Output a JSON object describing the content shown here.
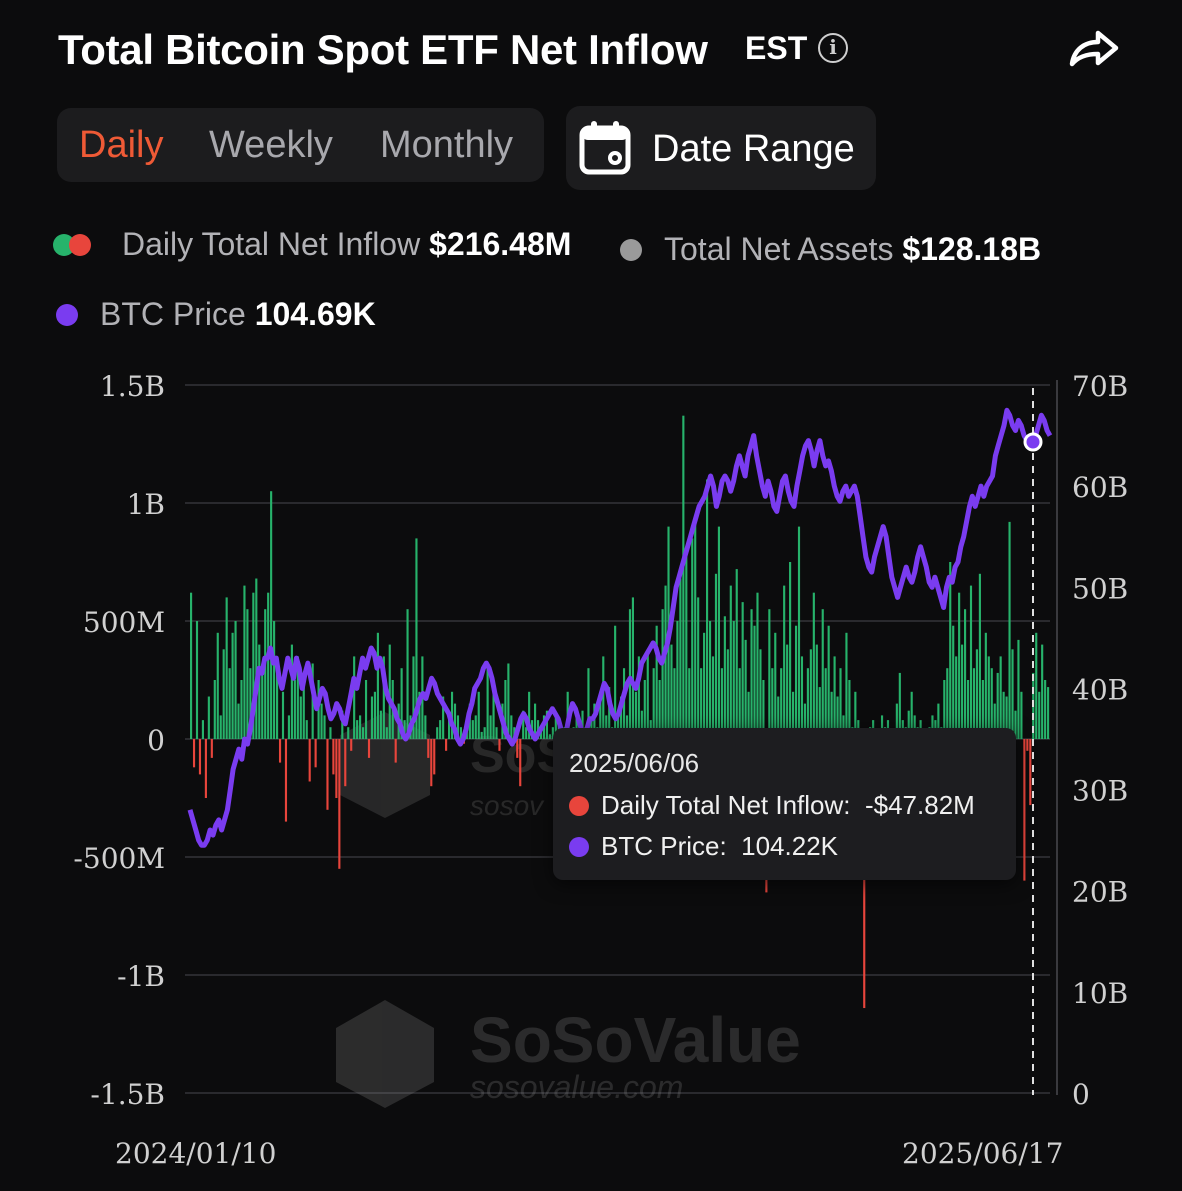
{
  "header": {
    "title": "Total Bitcoin Spot ETF Net Inflow",
    "timezone": "EST",
    "info_glyph": "i"
  },
  "period_tabs": [
    {
      "label": "Daily",
      "active": true
    },
    {
      "label": "Weekly",
      "active": false
    },
    {
      "label": "Monthly",
      "active": false
    }
  ],
  "date_range": {
    "label": "Date Range"
  },
  "legend": {
    "inflow": {
      "label": "Daily Total Net Inflow",
      "value": "$216.48M"
    },
    "assets": {
      "label": "Total Net Assets",
      "value": "$128.18B"
    },
    "price": {
      "label": "BTC Price",
      "value": "104.69K"
    }
  },
  "tooltip": {
    "date": "2025/06/06",
    "inflow_label": "Daily Total Net Inflow:",
    "inflow_value": "-$47.82M",
    "price_label": "BTC Price:",
    "price_value": "104.22K"
  },
  "watermark": {
    "brand": "SoSoValue",
    "site": "sosovalue.com",
    "brand_short": "SoSoV",
    "site_short": "sosov"
  },
  "colors": {
    "inflow_positive": "#27b36b",
    "inflow_negative": "#e8453c",
    "price_line": "#7a3cf0",
    "assets": "#9a9a9a",
    "accent": "#ef5a36"
  },
  "chart_data": {
    "type": "bar",
    "x_start": "2024/01/10",
    "x_end": "2025/06/17",
    "x_tick_labels": [
      "2024/01/10",
      "2025/06/17"
    ],
    "left_axis": {
      "ticks": [
        1.5,
        1,
        0.5,
        0,
        -0.5,
        -1,
        -1.5
      ],
      "labels": [
        "1.5B",
        "1B",
        "500M",
        "0",
        "-500M",
        "-1B",
        "-1.5B"
      ],
      "range": [
        -1.5,
        1.5
      ]
    },
    "right_axis": {
      "ticks": [
        70,
        60,
        50,
        40,
        30,
        20,
        10,
        0
      ],
      "labels": [
        "70B",
        "60B",
        "50B",
        "40B",
        "30B",
        "20B",
        "10B",
        "0"
      ],
      "range": [
        0,
        70
      ]
    },
    "inflow_bars_billions": [
      0.62,
      -0.12,
      0.5,
      -0.15,
      0.08,
      -0.25,
      0.18,
      -0.08,
      0.25,
      0.45,
      0.1,
      0.38,
      0.6,
      0.3,
      0.45,
      0.5,
      0.15,
      0.25,
      0.65,
      0.55,
      0.3,
      0.62,
      0.68,
      0.4,
      0.3,
      0.55,
      0.62,
      1.05,
      0.5,
      0.3,
      -0.1,
      0.2,
      -0.35,
      0.1,
      0.4,
      0.25,
      0.35,
      0.18,
      0.28,
      0.08,
      -0.18,
      0.32,
      -0.12,
      0.25,
      0.15,
      0.1,
      -0.3,
      0.05,
      -0.15,
      -0.25,
      -0.55,
      0.12,
      -0.2,
      0.05,
      -0.05,
      0.35,
      0.08,
      0.1,
      0.05,
      0.25,
      -0.08,
      0.18,
      0.2,
      0.45,
      0.12,
      0.35,
      0.05,
      0.4,
      0.25,
      -0.1,
      0.15,
      0.3,
      0.08,
      0.55,
      0.1,
      0.35,
      0.85,
      0.2,
      0.35,
      0.1,
      -0.08,
      -0.2,
      -0.15,
      0.05,
      0.08,
      0.18,
      -0.05,
      0.12,
      0.2,
      0.15,
      0.1,
      0.05,
      -0.02,
      0.05,
      0.15,
      0.08,
      0.1,
      0.2,
      0.03,
      0.05,
      0.3,
      0.1,
      0.2,
      0.05,
      -0.05,
      0.15,
      0.25,
      0.32,
      0.1,
      0.05,
      -0.08,
      -0.2,
      0.12,
      0.05,
      0.2,
      0.08,
      0.15,
      0.08,
      0.05,
      0.1,
      0.12,
      0.02,
      0.05,
      0.1,
      0.08,
      0.05,
      0.05,
      0.2,
      0.03,
      0.05,
      0.1,
      0.05,
      0.12,
      0.05,
      0.3,
      0.08,
      0.15,
      0.05,
      0.2,
      0.35,
      0.1,
      0.22,
      0.05,
      0.48,
      0.12,
      0.18,
      0.3,
      0.1,
      0.55,
      0.6,
      0.2,
      0.35,
      0.12,
      0.25,
      0.38,
      0.08,
      0.3,
      0.48,
      0.25,
      0.55,
      0.65,
      0.9,
      0.4,
      0.3,
      0.5,
      0.68,
      1.37,
      0.8,
      0.3,
      0.85,
      0.92,
      0.6,
      0.3,
      0.45,
      1.1,
      0.5,
      0.35,
      0.7,
      0.9,
      0.3,
      0.52,
      0.38,
      0.65,
      0.5,
      0.72,
      0.3,
      0.58,
      0.42,
      0.2,
      0.55,
      0.48,
      0.62,
      0.38,
      0.25,
      -0.65,
      0.55,
      0.3,
      0.45,
      0.18,
      0.3,
      0.65,
      0.4,
      0.75,
      0.2,
      0.48,
      0.9,
      0.35,
      0.15,
      0.3,
      0.38,
      0.62,
      0.4,
      0.22,
      0.55,
      0.3,
      0.48,
      0.2,
      0.35,
      0.18,
      0.3,
      0.1,
      0.45,
      0.25,
      0.05,
      0.2,
      0.08,
      -0.28,
      -1.14,
      0.02,
      0.05,
      0.08,
      0.03,
      -0.05,
      0.1,
      0.05,
      0.08,
      0.03,
      0.02,
      0.15,
      0.28,
      0.08,
      0.05,
      0.12,
      0.2,
      0.1,
      0.05,
      0.08,
      0.03,
      0.02,
      0.05,
      0.1,
      0.08,
      0.15,
      0.05,
      0.25,
      0.3,
      0.75,
      0.48,
      0.35,
      0.62,
      0.4,
      0.55,
      0.25,
      0.65,
      0.3,
      0.38,
      0.7,
      0.25,
      0.45,
      0.35,
      0.3,
      0.15,
      0.28,
      0.35,
      0.2,
      0.18,
      0.92,
      0.38,
      0.12,
      0.42,
      0.2,
      -0.6,
      -0.05,
      -0.28,
      0.28,
      0.45,
      0.2,
      0.4,
      0.25,
      0.22
    ],
    "btc_price_line_B_axis": [
      28,
      27,
      26,
      25,
      24.5,
      24.5,
      25,
      26,
      25.5,
      26.5,
      27,
      26,
      27,
      28,
      30,
      32,
      33,
      34,
      33,
      35,
      34.5,
      36,
      38,
      40,
      42,
      41.5,
      43,
      43,
      44,
      42.5,
      43,
      41,
      40,
      41.5,
      43,
      42,
      41,
      43,
      42,
      40,
      41.5,
      42.5,
      41,
      39.5,
      38,
      39,
      40,
      39.5,
      38,
      37,
      37.5,
      38.5,
      38,
      37,
      36.5,
      38,
      39.5,
      41,
      40,
      41.5,
      43,
      42,
      43,
      44,
      43.5,
      42,
      43,
      42,
      40,
      39,
      38.5,
      38,
      37,
      36.5,
      35.5,
      35,
      35.5,
      36.5,
      37,
      38,
      39,
      39.5,
      39,
      40,
      41,
      40.5,
      39.5,
      39,
      38.5,
      38,
      37.5,
      36.5,
      36,
      35,
      34.5,
      35,
      36,
      37.5,
      38.5,
      40,
      40.5,
      41,
      42,
      42.5,
      42,
      41,
      39.5,
      38.5,
      37.5,
      36.5,
      35.5,
      35,
      34.5,
      35,
      36,
      37,
      37.5,
      37,
      36,
      35.5,
      35,
      35.5,
      36,
      36.5,
      37,
      37.5,
      38,
      37.5,
      37,
      36,
      35.5,
      36,
      37.5,
      38.5,
      38,
      37,
      36,
      35.5,
      36,
      37,
      37,
      37.5,
      38.5,
      39.5,
      40.5,
      40,
      38.5,
      37.5,
      37,
      37.5,
      38.5,
      39.5,
      40.5,
      41,
      40.5,
      40,
      41,
      42.5,
      43,
      43.5,
      44,
      44.5,
      44,
      43,
      42.5,
      43.5,
      44.5,
      46,
      48,
      50,
      51,
      52,
      53,
      54,
      55,
      56,
      57,
      58,
      58.5,
      59,
      60,
      61,
      60,
      58,
      59,
      60.5,
      61,
      60.5,
      59.5,
      60.5,
      62,
      63,
      62,
      61,
      63,
      64,
      65,
      63,
      61.5,
      60,
      59,
      60.5,
      59.5,
      58,
      57.5,
      59,
      60.5,
      61,
      59.5,
      58.5,
      58,
      60,
      61.5,
      63,
      64,
      64.5,
      63.5,
      62,
      63.5,
      64.5,
      63,
      62,
      62.5,
      61.5,
      60,
      59,
      58.5,
      59.5,
      60,
      59,
      59.5,
      60,
      59,
      57,
      55,
      53,
      52,
      51.5,
      53,
      54,
      55,
      56,
      55,
      53,
      51,
      50,
      49,
      50,
      51,
      52,
      51,
      50.5,
      51.5,
      53,
      54,
      53,
      52,
      50.5,
      50,
      51,
      50,
      49,
      48,
      50,
      51,
      50.5,
      52,
      52.5,
      54,
      55,
      56.5,
      58,
      59,
      58,
      59,
      60,
      59,
      60,
      60.5,
      61,
      63,
      64,
      65,
      66,
      67.5,
      67,
      66,
      65.5,
      66.5,
      66,
      65,
      64.5,
      64,
      64.5,
      65,
      66,
      67,
      66.5,
      65.5,
      65
    ]
  }
}
